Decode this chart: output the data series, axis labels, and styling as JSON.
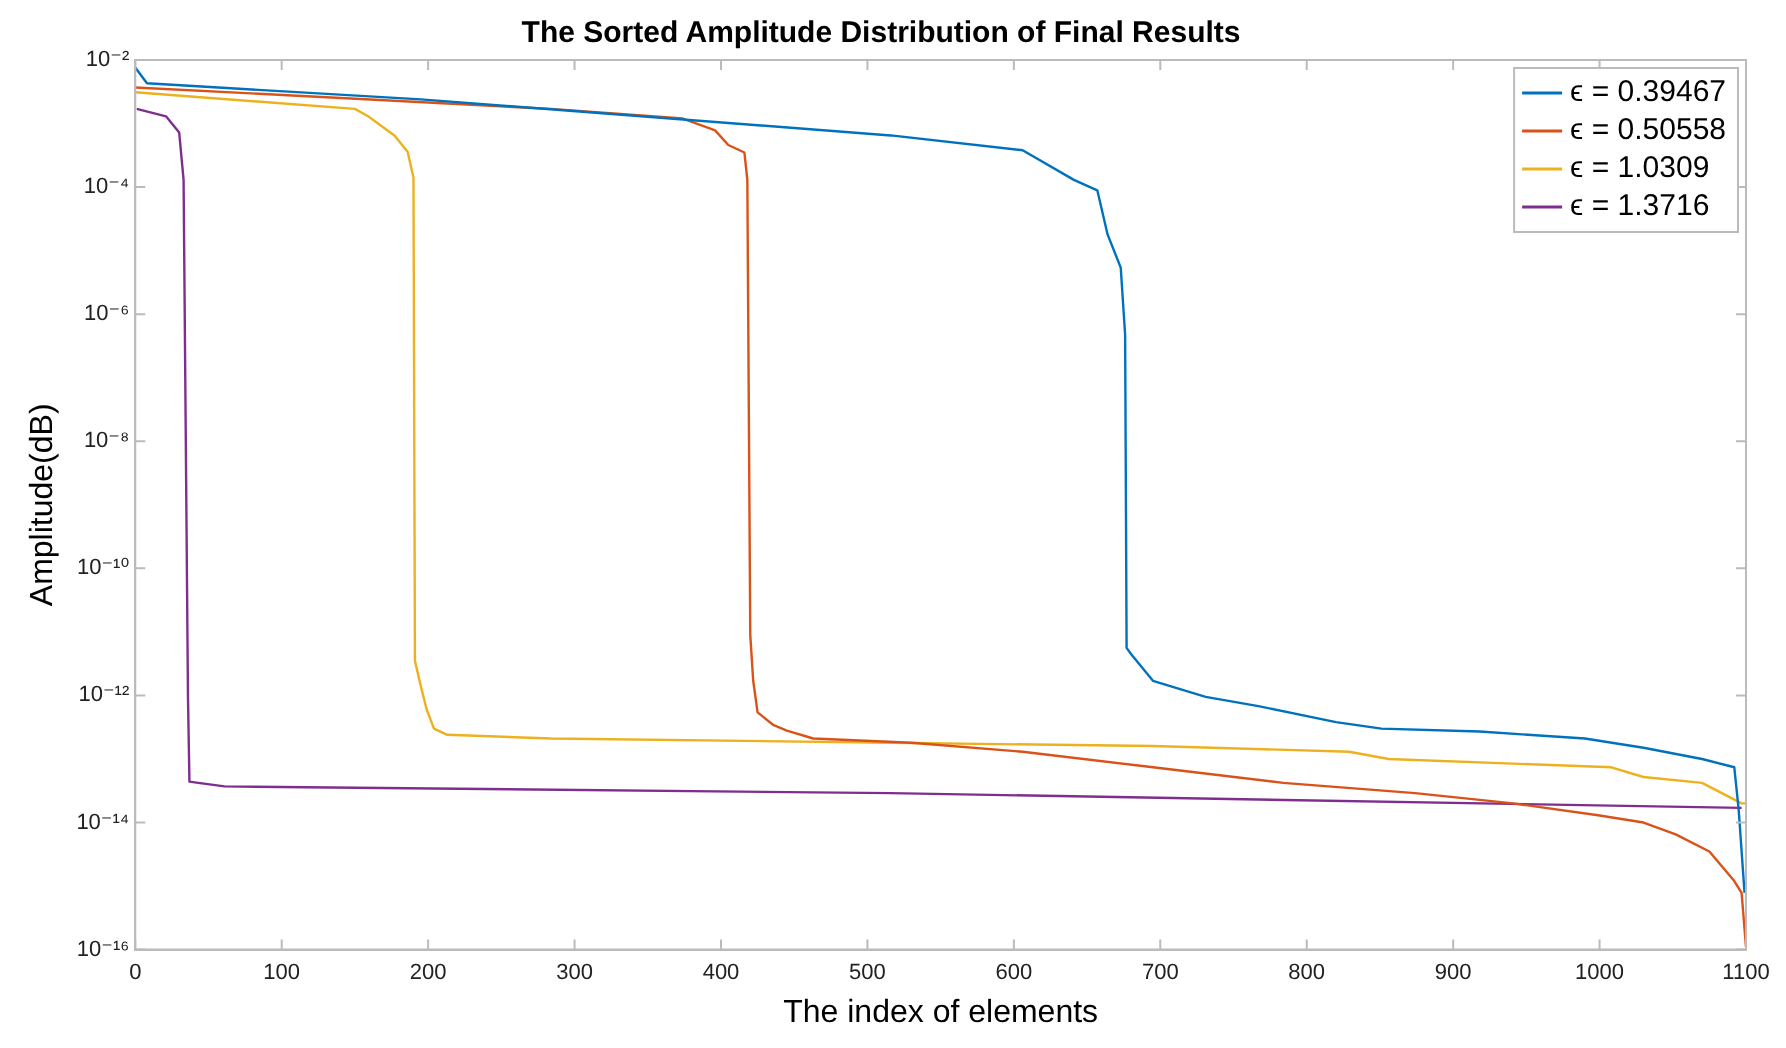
{
  "chart_data": {
    "type": "line",
    "title": "The Sorted Amplitude Distribution of Final Results",
    "xlabel": "The index of elements",
    "ylabel": "Amplitude(dB)",
    "log": "y",
    "legend": "top right",
    "xlim": [
      0,
      1100
    ],
    "xticks": [
      0,
      100,
      200,
      300,
      400,
      500,
      600,
      700,
      800,
      900,
      1000,
      1100
    ],
    "ylim": [
      1e-16,
      0.01
    ],
    "yticks": [
      {
        "value": 1e-16,
        "label": "10⁻¹⁶"
      },
      {
        "value": 1e-14,
        "label": "10⁻¹⁴"
      },
      {
        "value": 1e-12,
        "label": "10⁻¹²"
      },
      {
        "value": 1e-10,
        "label": "10⁻¹⁰"
      },
      {
        "value": 1e-08,
        "label": "10⁻⁸"
      },
      {
        "value": 1e-06,
        "label": "10⁻⁶"
      },
      {
        "value": 0.0001,
        "label": "10⁻⁴"
      },
      {
        "value": 0.01,
        "label": "10⁻²"
      }
    ],
    "series": [
      {
        "name": "ϵ = 0.39467",
        "color": "#0072bd",
        "x": [
          0,
          8,
          195,
          516,
          606,
          641,
          657,
          664,
          673,
          676,
          677,
          680,
          695,
          731,
          767,
          820,
          851,
          918,
          990,
          1030,
          1070,
          1092,
          1095,
          1099
        ],
        "values": [
          0.0076,
          0.0043,
          0.0024,
          0.00065,
          0.00038,
          0.00013,
          8.9e-05,
          1.8e-05,
          5.4e-06,
          4.7e-07,
          5.6e-12,
          4.5e-12,
          1.7e-12,
          9.5e-13,
          6.8e-13,
          3.8e-13,
          3e-13,
          2.7e-13,
          2.1e-13,
          1.5e-13,
          1e-13,
          7.4e-14,
          1.6e-14,
          7.8e-16
        ]
      },
      {
        "name": "ϵ = 0.50558",
        "color": "#d95319",
        "x": [
          0,
          284,
          374,
          396,
          405,
          416,
          418,
          420,
          422,
          425,
          436,
          445,
          463,
          530,
          606,
          695,
          784,
          874,
          941,
          999,
          1030,
          1052,
          1075,
          1092,
          1097,
          1100
        ],
        "values": [
          0.0037,
          0.0017,
          0.0012,
          0.00078,
          0.00046,
          0.00035,
          0.00013,
          8.9e-12,
          1.7e-12,
          5.4e-13,
          3.4e-13,
          2.8e-13,
          2.1e-13,
          1.8e-13,
          1.3e-13,
          7.4e-14,
          4.2e-14,
          2.9e-14,
          2e-14,
          1.3e-14,
          1e-14,
          6.5e-15,
          3.5e-15,
          1.2e-15,
          7.8e-16,
          1.1e-16
        ]
      },
      {
        "name": "ϵ = 1.0309",
        "color": "#edb120",
        "x": [
          0,
          150,
          159,
          177,
          186,
          190,
          191,
          195,
          199,
          204,
          213,
          284,
          516,
          695,
          829,
          856,
          1008,
          1030,
          1070,
          1097,
          1100
        ],
        "values": [
          0.0031,
          0.0017,
          0.0013,
          0.00065,
          0.00036,
          0.00014,
          3.5e-12,
          1.4e-12,
          6e-13,
          3e-13,
          2.4e-13,
          2.1e-13,
          1.8e-13,
          1.6e-13,
          1.3e-13,
          1e-13,
          7.4e-14,
          5.2e-14,
          4.2e-14,
          2e-14,
          2e-14
        ]
      },
      {
        "name": "ϵ = 1.3716",
        "color": "#7e2f8e",
        "x": [
          1,
          21,
          30,
          33,
          36,
          37,
          43,
          61,
          516,
          1097
        ],
        "values": [
          0.0017,
          0.0013,
          0.00072,
          0.00013,
          9.5e-13,
          4.4e-14,
          4.2e-14,
          3.7e-14,
          2.9e-14,
          1.7e-14
        ]
      }
    ]
  }
}
